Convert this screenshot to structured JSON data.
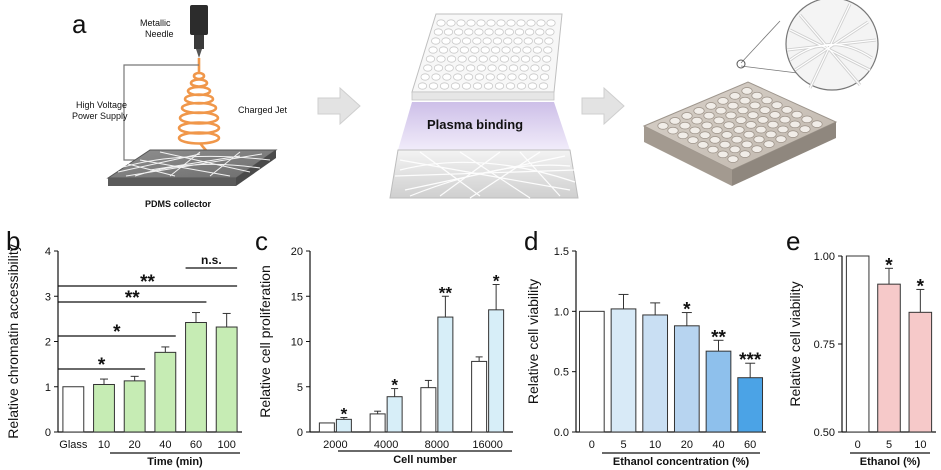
{
  "panel_a": {
    "letter": "a",
    "needle_label_1": "Metallic",
    "needle_label_2": "Needle",
    "power_label_1": "High Voltage",
    "power_label_2": "Power Supply",
    "jet_label": "Charged Jet",
    "collector_label": "PDMS collector",
    "plasma_label": "Plasma binding"
  },
  "colors": {
    "green": "#c6ecb4",
    "light_blue": "#d7eef8",
    "blue_1": "#d8eaf7",
    "blue_2": "#c9dff3",
    "blue_3": "#b7d4f0",
    "blue_4": "#8ec0ec",
    "blue_5": "#4ba3e6",
    "pink": "#f6c9c9",
    "white": "#ffffff"
  },
  "chart_data": [
    {
      "id": "b",
      "type": "bar",
      "letter": "b",
      "ylabel": "Relative chromatin accessibility",
      "xlabel": "Time (min)",
      "categories": [
        "Glass",
        "10",
        "20",
        "40",
        "60",
        "100"
      ],
      "values": [
        1.0,
        1.05,
        1.13,
        1.76,
        2.42,
        2.32
      ],
      "errors": [
        0.0,
        0.12,
        0.1,
        0.12,
        0.22,
        0.3
      ],
      "ylim": [
        0,
        4
      ],
      "yticks": [
        "0",
        "1",
        "2",
        "3",
        "4"
      ],
      "comparisons": [
        {
          "from": "Glass",
          "to": "20",
          "label": "*"
        },
        {
          "from": "Glass",
          "to": "40",
          "label": "*"
        },
        {
          "from": "Glass",
          "to": "60",
          "label": "**"
        },
        {
          "from": "Glass",
          "to": "100",
          "label": "**"
        },
        {
          "from": "60",
          "to": "100",
          "label": "n.s."
        }
      ]
    },
    {
      "id": "c",
      "type": "bar",
      "letter": "c",
      "ylabel": "Relative cell proliferation",
      "xlabel": "Cell number",
      "categories": [
        "2000",
        "4000",
        "8000",
        "16000"
      ],
      "series": [
        {
          "values": [
            1.0,
            2.0,
            4.9,
            7.8
          ],
          "errors": [
            0.0,
            0.3,
            0.8,
            0.5
          ]
        },
        {
          "values": [
            1.4,
            3.9,
            12.7,
            13.5
          ],
          "errors": [
            0.2,
            0.9,
            2.3,
            2.8
          ]
        }
      ],
      "significance": [
        "*",
        "*",
        "**",
        "*"
      ],
      "ylim": [
        0,
        20
      ],
      "yticks": [
        "0",
        "5",
        "10",
        "15",
        "20"
      ]
    },
    {
      "id": "d",
      "type": "bar",
      "letter": "d",
      "ylabel": "Relative cell viability",
      "xlabel": "Ethanol concentration (%)",
      "categories": [
        "0",
        "5",
        "10",
        "20",
        "40",
        "60"
      ],
      "values": [
        1.0,
        1.02,
        0.97,
        0.88,
        0.67,
        0.45
      ],
      "errors": [
        0.0,
        0.12,
        0.1,
        0.11,
        0.09,
        0.12
      ],
      "significance": [
        "",
        "",
        "",
        "*",
        "**",
        "***"
      ],
      "ylim": [
        0,
        1.5
      ],
      "yticks": [
        "0.0",
        "0.5",
        "1.0",
        "1.5"
      ]
    },
    {
      "id": "e",
      "type": "bar",
      "letter": "e",
      "ylabel": "Relative cell viability",
      "xlabel": "Ethanol (%)",
      "categories": [
        "0",
        "5",
        "10"
      ],
      "values": [
        1.0,
        0.92,
        0.84
      ],
      "errors": [
        0.0,
        0.045,
        0.065
      ],
      "significance": [
        "",
        "*",
        "*"
      ],
      "ylim": [
        0.5,
        1.0
      ],
      "yticks": [
        "0.50",
        "0.75",
        "1.00"
      ]
    }
  ]
}
